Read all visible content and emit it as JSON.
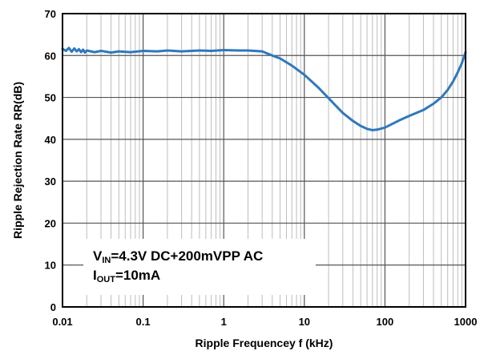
{
  "chart_data": {
    "type": "line",
    "xlabel": "Ripple Frequencey f (kHz)",
    "ylabel": "Ripple Rejection Rate RR(dB)",
    "xscale": "log",
    "xlim": [
      0.01,
      1000
    ],
    "ylim": [
      0,
      70
    ],
    "grid": "on (major and minor log gridlines)",
    "x_tick_labels": [
      "0.01",
      "0.1",
      "1",
      "10",
      "100",
      "1000"
    ],
    "y_tick_labels": [
      "0",
      "10",
      "20",
      "30",
      "40",
      "50",
      "60",
      "70"
    ],
    "color": "#2f78be",
    "series": [
      {
        "x": [
          0.01,
          0.011,
          0.012,
          0.013,
          0.014,
          0.015,
          0.016,
          0.017,
          0.018,
          0.019,
          0.02,
          0.025,
          0.03,
          0.04,
          0.05,
          0.07,
          0.1,
          0.15,
          0.2,
          0.3,
          0.5,
          0.7,
          1,
          1.5,
          2,
          3,
          4,
          5,
          7,
          10,
          15,
          20,
          30,
          40,
          50,
          60,
          70,
          80,
          100,
          150,
          200,
          300,
          400,
          500,
          600,
          700,
          800,
          900,
          1000
        ],
        "y": [
          61.6,
          61.1,
          61.8,
          60.9,
          61.7,
          61.0,
          61.5,
          60.8,
          61.4,
          60.7,
          61.2,
          60.8,
          61.1,
          60.7,
          61.0,
          60.8,
          61.1,
          61.0,
          61.2,
          61.0,
          61.2,
          61.1,
          61.3,
          61.2,
          61.2,
          61.0,
          60.0,
          59.3,
          57.6,
          55.4,
          52.3,
          49.8,
          46.3,
          44.4,
          43.2,
          42.5,
          42.2,
          42.3,
          42.8,
          44.5,
          45.6,
          47.0,
          48.5,
          50.0,
          51.8,
          53.8,
          56.0,
          58.2,
          60.8
        ]
      }
    ]
  },
  "annotation": {
    "line1_main": "V",
    "line1_sub": "IN",
    "line1_rest": "=4.3V DC+200mVPP AC",
    "line2_main": "I",
    "line2_sub": "OUT",
    "line2_rest": "=10mA"
  }
}
